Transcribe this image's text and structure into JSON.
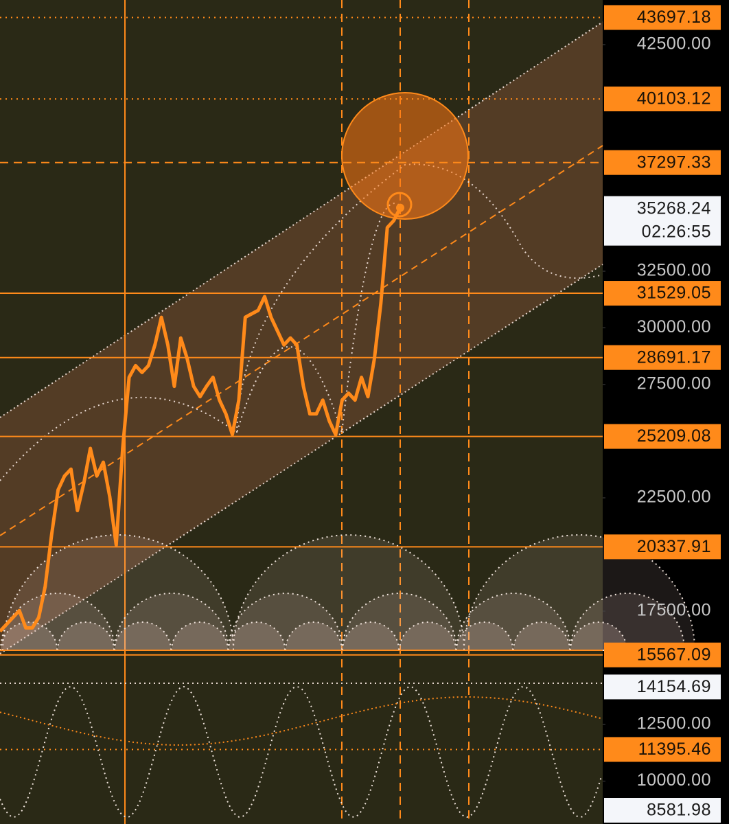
{
  "chart_data": {
    "type": "line",
    "color": "#ff8a1a",
    "ylim": [
      8106,
      44470
    ],
    "yticks": [
      {
        "value": 10000,
        "label": "10000.00"
      },
      {
        "value": 12500,
        "label": "12500.00"
      },
      {
        "value": 17500,
        "label": "17500.00"
      },
      {
        "value": 22500,
        "label": "22500.00"
      },
      {
        "value": 27500,
        "label": "27500.00"
      },
      {
        "value": 30000,
        "label": "30000.00"
      },
      {
        "value": 32500,
        "label": "32500.00"
      },
      {
        "value": 42500,
        "label": "42500.00"
      }
    ],
    "values": [
      16609,
      16914,
      17218,
      17523,
      16761,
      16761,
      17218,
      18589,
      20873,
      22853,
      23463,
      23767,
      21939,
      23158,
      24681,
      23463,
      24072,
      22549,
      20417,
      24681,
      27818,
      28336,
      28032,
      28336,
      29250,
      30468,
      29250,
      27422,
      29555,
      28641,
      27422,
      26965,
      27422,
      27818,
      26813,
      26204,
      25290,
      26813,
      30468,
      30621,
      30773,
      31382,
      30468,
      29859,
      29250,
      29555,
      29250,
      27422,
      26204,
      26204,
      26813,
      25899,
      25290,
      26813,
      27118,
      26813,
      27818,
      26965,
      28641,
      31078,
      34428,
      34733,
      35300
    ],
    "levels": [
      {
        "value": 43697.18,
        "style": "dotted"
      },
      {
        "value": 40103.12,
        "style": "dotted"
      },
      {
        "value": 37297.33,
        "style": "dashed"
      },
      {
        "value": 31529.05,
        "style": "solid"
      },
      {
        "value": 28691.17,
        "style": "solid"
      },
      {
        "value": 25209.08,
        "style": "solid"
      },
      {
        "value": 20337.91,
        "style": "solid"
      },
      {
        "value": 15567.09,
        "style": "solid"
      },
      {
        "value": 11395.46,
        "style": "dotted"
      }
    ],
    "markers": [
      14154.69,
      8581.98
    ],
    "current": {
      "value": 35268.24,
      "time": "02:26:55"
    }
  }
}
